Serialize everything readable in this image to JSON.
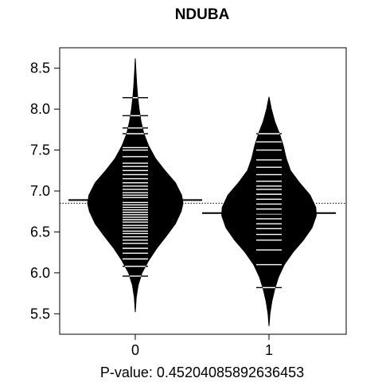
{
  "chart_data": {
    "type": "beanplot",
    "title": "NDUBA",
    "xlabel": "P-value: 0.45204085892636453",
    "ylabel": "",
    "ylim": [
      5.25,
      8.75
    ],
    "yticks": [
      5.5,
      6.0,
      6.5,
      7.0,
      7.5,
      8.0,
      8.5
    ],
    "ytick_labels": [
      "5.5",
      "6.0",
      "6.5",
      "7.0",
      "7.5",
      "8.0",
      "8.5"
    ],
    "categories": [
      "0",
      "1"
    ],
    "overall_mean": 6.85,
    "groups": [
      {
        "category": "0",
        "mean": 6.89,
        "density_min": 5.52,
        "density_max": 8.62,
        "density": [
          {
            "y": 5.52,
            "w": 0.0
          },
          {
            "y": 5.7,
            "w": 0.02
          },
          {
            "y": 5.85,
            "w": 0.06
          },
          {
            "y": 6.0,
            "w": 0.14
          },
          {
            "y": 6.15,
            "w": 0.28
          },
          {
            "y": 6.3,
            "w": 0.45
          },
          {
            "y": 6.45,
            "w": 0.65
          },
          {
            "y": 6.6,
            "w": 0.84
          },
          {
            "y": 6.75,
            "w": 0.96
          },
          {
            "y": 6.85,
            "w": 1.0
          },
          {
            "y": 6.95,
            "w": 0.97
          },
          {
            "y": 7.1,
            "w": 0.84
          },
          {
            "y": 7.25,
            "w": 0.62
          },
          {
            "y": 7.4,
            "w": 0.42
          },
          {
            "y": 7.55,
            "w": 0.28
          },
          {
            "y": 7.7,
            "w": 0.18
          },
          {
            "y": 7.85,
            "w": 0.12
          },
          {
            "y": 8.0,
            "w": 0.08
          },
          {
            "y": 8.15,
            "w": 0.05
          },
          {
            "y": 8.3,
            "w": 0.03
          },
          {
            "y": 8.45,
            "w": 0.015
          },
          {
            "y": 8.62,
            "w": 0.0
          }
        ],
        "observations": [
          5.96,
          6.08,
          6.17,
          6.24,
          6.3,
          6.36,
          6.4,
          6.44,
          6.48,
          6.51,
          6.55,
          6.58,
          6.62,
          6.65,
          6.68,
          6.71,
          6.74,
          6.77,
          6.8,
          6.83,
          6.86,
          6.89,
          6.92,
          6.95,
          6.98,
          7.02,
          7.06,
          7.1,
          7.15,
          7.2,
          7.25,
          7.3,
          7.34,
          7.42,
          7.5,
          7.53,
          7.7,
          7.77,
          7.92,
          8.14
        ]
      },
      {
        "category": "1",
        "mean": 6.73,
        "density_min": 5.35,
        "density_max": 8.15,
        "density": [
          {
            "y": 5.35,
            "w": 0.0
          },
          {
            "y": 5.5,
            "w": 0.02
          },
          {
            "y": 5.65,
            "w": 0.06
          },
          {
            "y": 5.8,
            "w": 0.12
          },
          {
            "y": 5.95,
            "w": 0.2
          },
          {
            "y": 6.1,
            "w": 0.32
          },
          {
            "y": 6.25,
            "w": 0.5
          },
          {
            "y": 6.4,
            "w": 0.72
          },
          {
            "y": 6.55,
            "w": 0.9
          },
          {
            "y": 6.7,
            "w": 0.99
          },
          {
            "y": 6.8,
            "w": 0.98
          },
          {
            "y": 6.95,
            "w": 0.86
          },
          {
            "y": 7.1,
            "w": 0.64
          },
          {
            "y": 7.25,
            "w": 0.45
          },
          {
            "y": 7.4,
            "w": 0.36
          },
          {
            "y": 7.55,
            "w": 0.3
          },
          {
            "y": 7.7,
            "w": 0.22
          },
          {
            "y": 7.85,
            "w": 0.12
          },
          {
            "y": 8.0,
            "w": 0.05
          },
          {
            "y": 8.15,
            "w": 0.0
          }
        ],
        "observations": [
          5.82,
          6.1,
          6.28,
          6.4,
          6.47,
          6.54,
          6.6,
          6.66,
          6.72,
          6.78,
          6.84,
          6.9,
          6.96,
          7.02,
          7.06,
          7.12,
          7.2,
          7.29,
          7.38,
          7.5,
          7.6,
          7.7
        ]
      }
    ]
  }
}
